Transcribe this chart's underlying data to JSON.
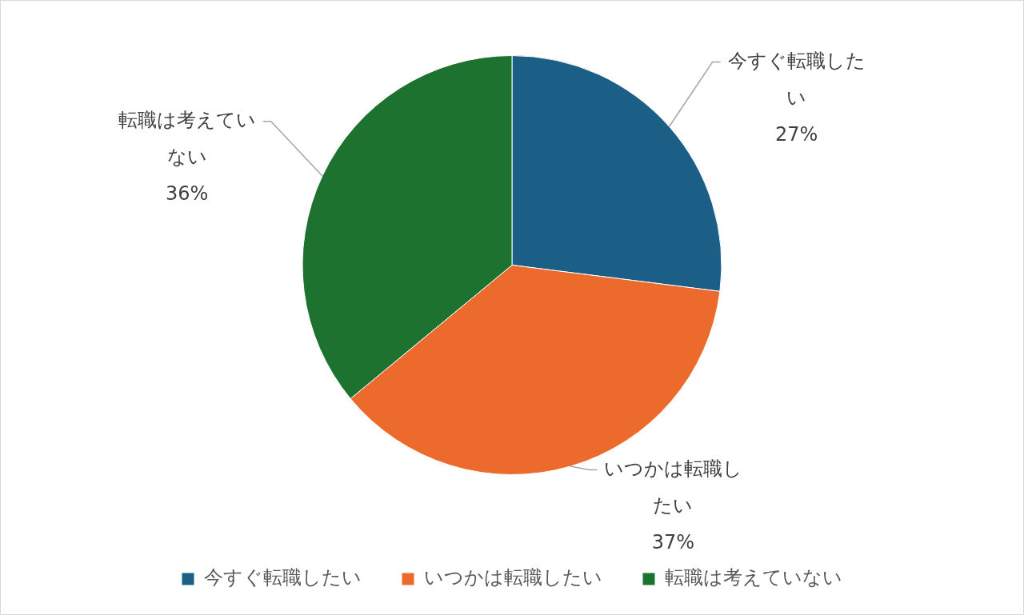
{
  "chart_data": {
    "type": "pie",
    "categories": [
      "今すぐ転職したい",
      "いつかは転職したい",
      "転職は考えていない"
    ],
    "values": [
      27,
      37,
      36
    ],
    "value_labels": [
      "27%",
      "37%",
      "36%"
    ],
    "colors": [
      "#1b5f86",
      "#ec6a2c",
      "#1d7230"
    ],
    "legend": "bottom"
  }
}
